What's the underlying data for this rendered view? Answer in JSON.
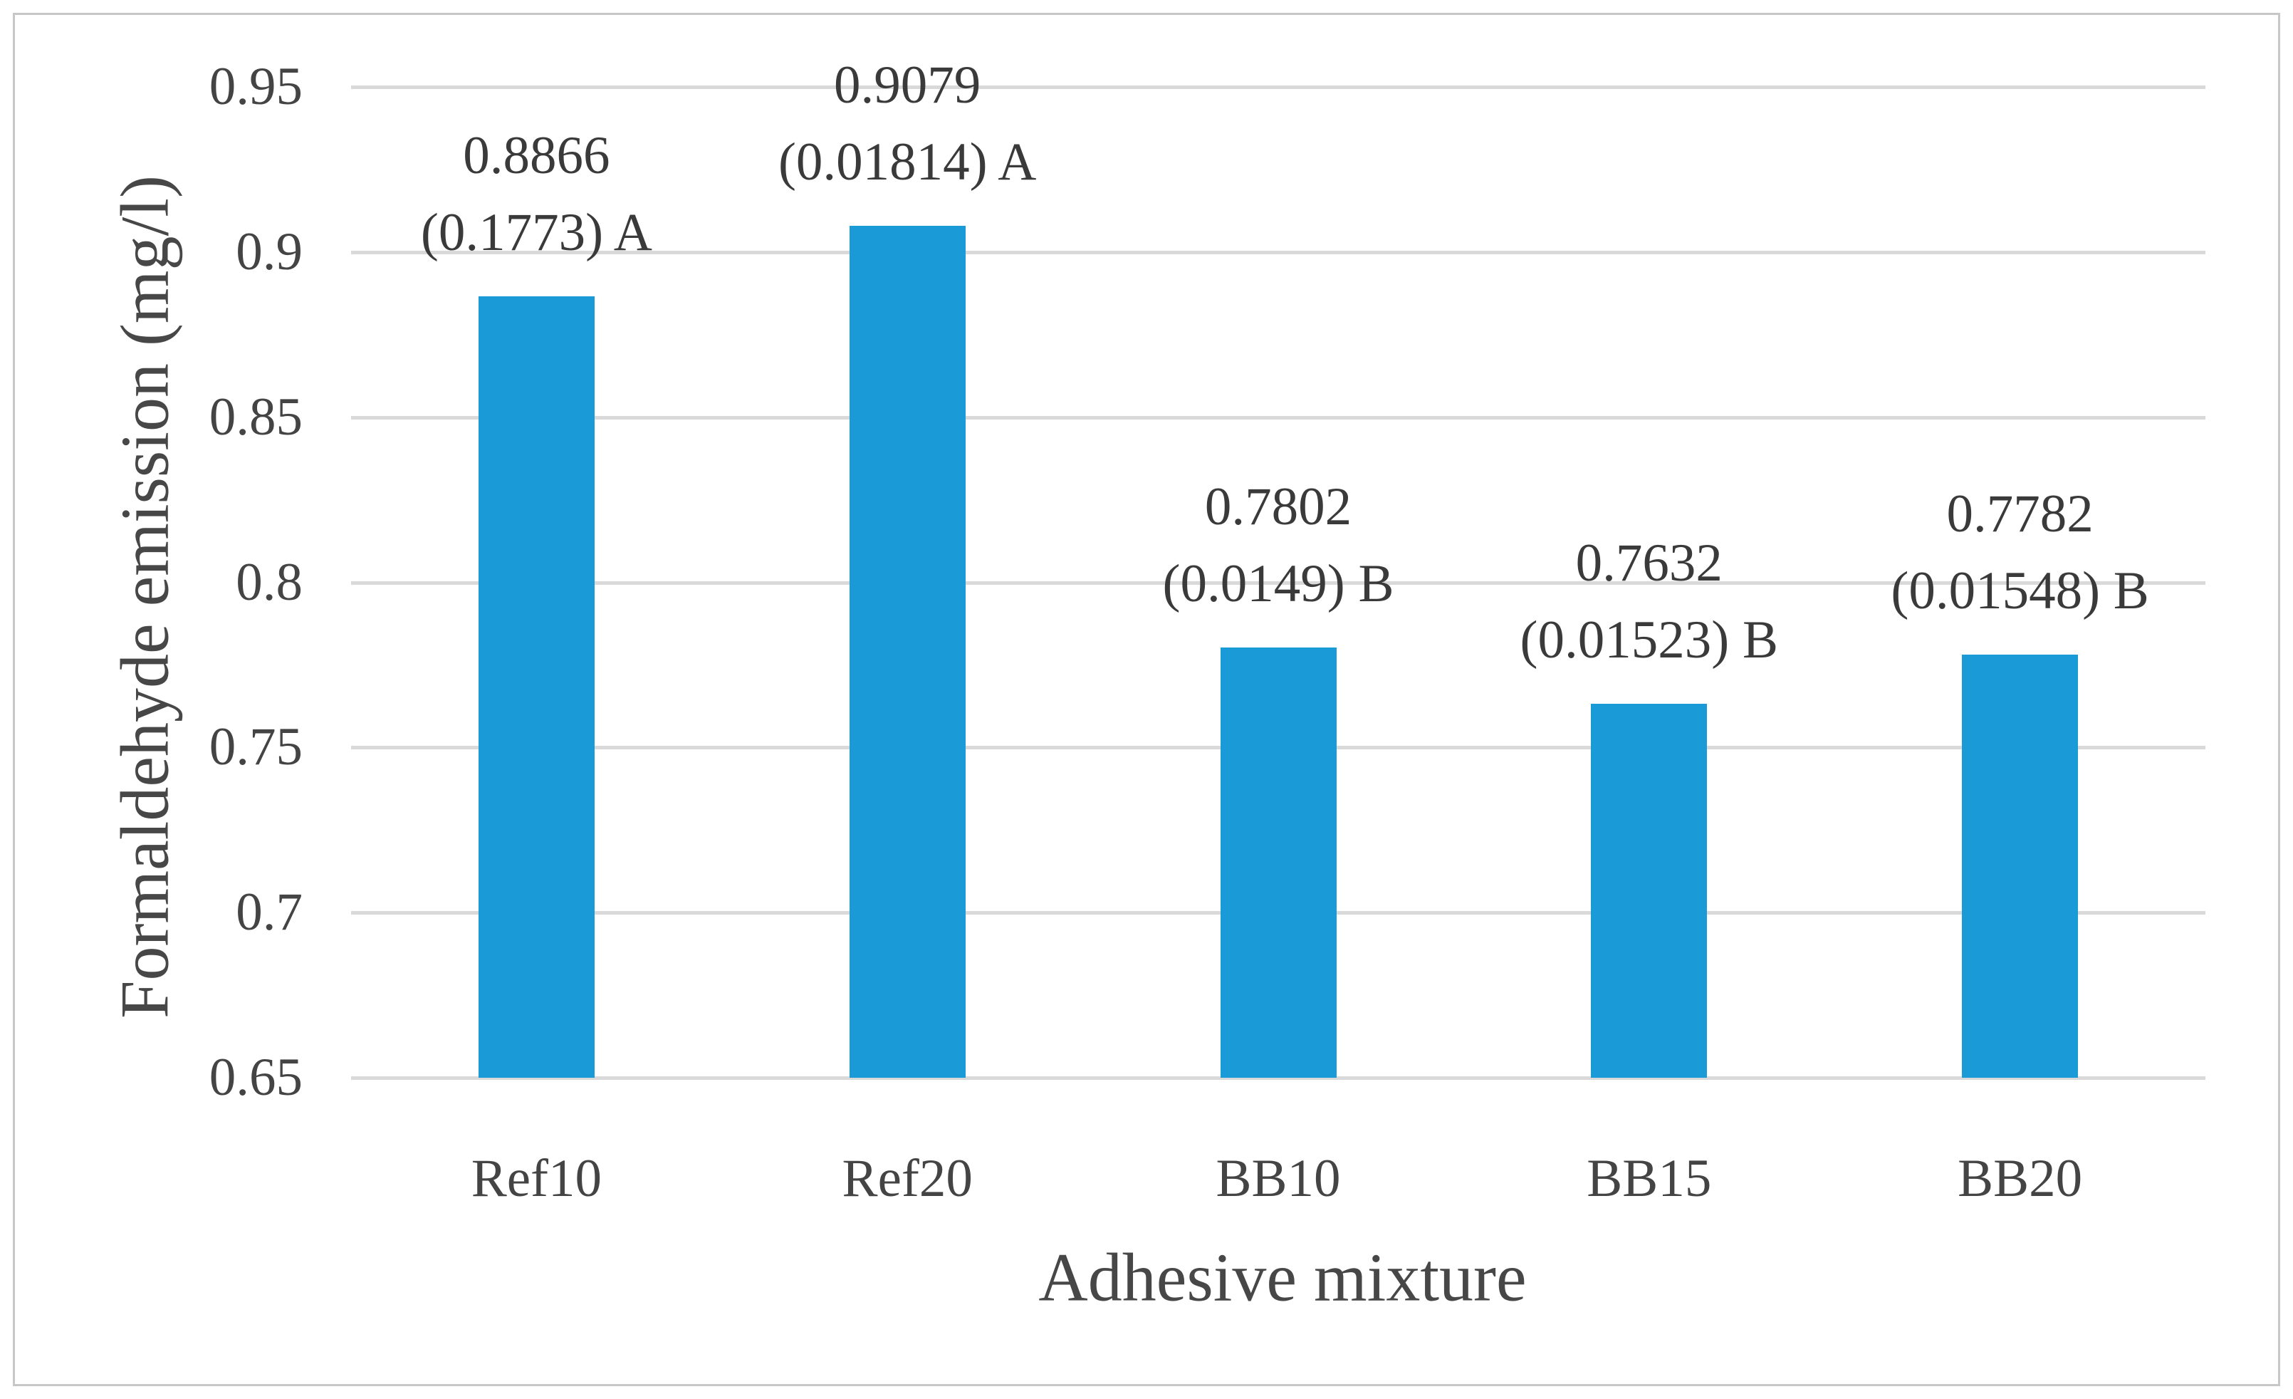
{
  "figure": {
    "background": "#ffffff",
    "border_color": "#c7c7c7"
  },
  "chart_data": {
    "type": "bar",
    "title": "",
    "xlabel": "Adhesive mixture",
    "ylabel": "Formaldehyde emission (mg/l)",
    "categories": [
      "Ref10",
      "Ref20",
      "BB10",
      "BB15",
      "BB20"
    ],
    "series": [
      {
        "name": "Formaldehyde emission",
        "values": [
          0.8866,
          0.9079,
          0.7802,
          0.7632,
          0.7782
        ]
      }
    ],
    "std_devs": [
      0.1773,
      0.01814,
      0.0149,
      0.01523,
      0.01548
    ],
    "significance_groups": [
      "A",
      "A",
      "B",
      "B",
      "B"
    ],
    "data_labels": [
      {
        "line1": "0.8866",
        "line2": "(0.1773) A"
      },
      {
        "line1": "0.9079",
        "line2": "(0.01814) A"
      },
      {
        "line1": "0.7802",
        "line2": "(0.0149) B"
      },
      {
        "line1": "0.7632",
        "line2": "(0.01523) B"
      },
      {
        "line1": "0.7782",
        "line2": "(0.01548) B"
      }
    ],
    "ylim": [
      0.65,
      0.95
    ],
    "yticks": [
      {
        "v": 0.95,
        "label": "0.95"
      },
      {
        "v": 0.9,
        "label": "0.9"
      },
      {
        "v": 0.85,
        "label": "0.85"
      },
      {
        "v": 0.8,
        "label": "0.8"
      },
      {
        "v": 0.75,
        "label": "0.75"
      },
      {
        "v": 0.7,
        "label": "0.7"
      },
      {
        "v": 0.65,
        "label": "0.65"
      }
    ],
    "grid": true,
    "legend_position": "none",
    "bar_color": "#1a9ad7",
    "gridline_color": "#d9d9d9",
    "text_color": "#444444"
  }
}
